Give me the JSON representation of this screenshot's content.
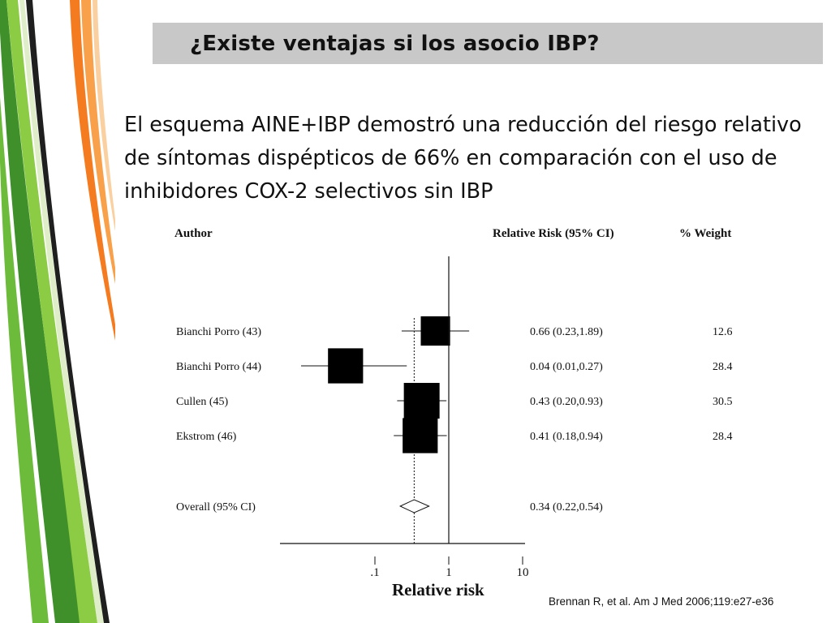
{
  "slide": {
    "title": "¿Existe ventajas si los asocio IBP?",
    "body": "El esquema AINE+IBP demostró una reducción del riesgo relativo de síntomas dispépticos de 66% en comparación con el uso de inhibidores COX-2 selectivos sin IBP",
    "citation": "Brennan R, et al. Am J Med 2006;119:e27-e36"
  },
  "colors": {
    "title_bar": "#c8c8c8",
    "stripe_green": "#7dc242",
    "stripe_orange": "#f47b20",
    "marker": "#000000"
  },
  "chart_data": {
    "type": "forest",
    "column_headers": {
      "author": "Author",
      "rr": "Relative Risk (95% CI)",
      "weight": "% Weight"
    },
    "xlabel": "Relative risk",
    "x_scale": "log",
    "xlim": [
      0.05,
      10
    ],
    "x_ticks": [
      {
        "value": 0.1,
        "label": ".1"
      },
      {
        "value": 1,
        "label": "1"
      },
      {
        "value": 10,
        "label": "10"
      }
    ],
    "studies": [
      {
        "author": "Bianchi Porro (43)",
        "rr": 0.66,
        "ci": [
          0.23,
          1.89
        ],
        "rr_text": "0.66 (0.23,1.89)",
        "weight": 12.6,
        "weight_text": "12.6"
      },
      {
        "author": "Bianchi Porro (44)",
        "rr": 0.04,
        "ci": [
          0.01,
          0.27
        ],
        "rr_text": "0.04 (0.01,0.27)",
        "weight": 28.4,
        "weight_text": "28.4"
      },
      {
        "author": "Cullen (45)",
        "rr": 0.43,
        "ci": [
          0.2,
          0.93
        ],
        "rr_text": "0.43 (0.20,0.93)",
        "weight": 30.5,
        "weight_text": "30.5"
      },
      {
        "author": "Ekstrom (46)",
        "rr": 0.41,
        "ci": [
          0.18,
          0.94
        ],
        "rr_text": "0.41 (0.18,0.94)",
        "weight": 28.4,
        "weight_text": "28.4"
      }
    ],
    "overall": {
      "author": "Overall (95% CI)",
      "rr": 0.34,
      "ci": [
        0.22,
        0.54
      ],
      "rr_text": "0.34 (0.22,0.54)"
    }
  }
}
